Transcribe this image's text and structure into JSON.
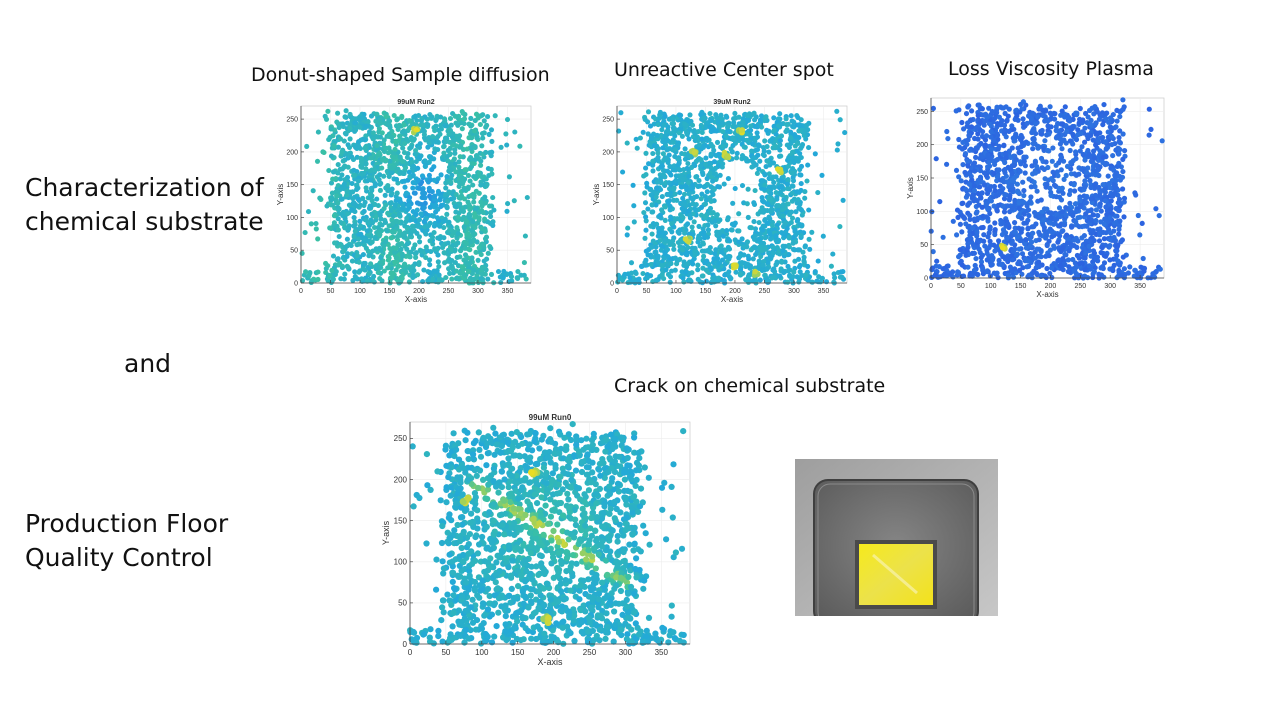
{
  "slide": {
    "left_label_top": "Characterization of\nchemical substrate",
    "left_label_mid": "and",
    "left_label_bottom": "Production Floor\nQuality Control",
    "caption_1": "Donut-shaped Sample diffusion",
    "caption_2": "Unreactive Center spot",
    "caption_3": "Loss Viscosity Plasma",
    "caption_4": "Crack on chemical substrate"
  },
  "photo": {
    "subject": "substrate-photo",
    "tray_color": "#6f6f6f",
    "pad_color": "#f2e51a",
    "background_color": "#b8b8b8"
  },
  "chart_data": [
    {
      "type": "scatter",
      "title": "99uM Run2",
      "xlabel": "X-axis",
      "ylabel": "Y-axis",
      "xlim": [
        0,
        390
      ],
      "ylim": [
        0,
        270
      ],
      "xticks": [
        0,
        50,
        100,
        150,
        200,
        250,
        300,
        350
      ],
      "yticks": [
        0,
        50,
        100,
        150,
        200,
        250
      ],
      "grid": true,
      "pattern": "donut",
      "hotspots": [
        [
          195,
          232,
          1.0
        ]
      ],
      "colormap": [
        "#2b6fe8",
        "#23a9d8",
        "#3cc2a0",
        "#c8d640",
        "#f5e01a"
      ]
    },
    {
      "type": "scatter",
      "title": "39uM Run2",
      "xlabel": "X-axis",
      "ylabel": "Y-axis",
      "xlim": [
        0,
        390
      ],
      "ylim": [
        0,
        270
      ],
      "xticks": [
        0,
        50,
        100,
        150,
        200,
        250,
        300,
        350
      ],
      "yticks": [
        0,
        50,
        100,
        150,
        200,
        250
      ],
      "grid": true,
      "pattern": "center-void",
      "hotspots": [
        [
          210,
          232,
          0.8
        ],
        [
          275,
          170,
          0.8
        ],
        [
          120,
          65,
          0.8
        ],
        [
          185,
          195,
          0.6
        ],
        [
          130,
          200,
          0.6
        ],
        [
          200,
          25,
          0.8
        ],
        [
          235,
          15,
          0.7
        ]
      ],
      "colormap": [
        "#2b6fe8",
        "#23a9d8",
        "#3cc2a0",
        "#c8d640",
        "#f5e01a"
      ]
    },
    {
      "type": "scatter",
      "title": "",
      "xlabel": "X-axis",
      "ylabel": "Y-axis",
      "xlim": [
        0,
        390
      ],
      "ylim": [
        0,
        270
      ],
      "xticks": [
        0,
        50,
        100,
        150,
        200,
        250,
        300,
        350
      ],
      "yticks": [
        0,
        50,
        100,
        150,
        200,
        250
      ],
      "grid": true,
      "pattern": "low-viscosity",
      "hotspots": [
        [
          120,
          45,
          1.0
        ]
      ],
      "colormap": [
        "#2b5ce0",
        "#2f7de0",
        "#36a0cc",
        "#c8d640",
        "#f5e01a"
      ]
    },
    {
      "type": "scatter",
      "title": "99uM Run0",
      "xlabel": "X-axis",
      "ylabel": "Y-axis",
      "xlim": [
        0,
        390
      ],
      "ylim": [
        0,
        270
      ],
      "xticks": [
        0,
        50,
        100,
        150,
        200,
        250,
        300,
        350
      ],
      "yticks": [
        0,
        50,
        100,
        150,
        200,
        250
      ],
      "grid": true,
      "pattern": "crack",
      "crack_line": [
        [
          90,
          195
        ],
        [
          300,
          75
        ]
      ],
      "hotspots": [
        [
          173,
          207,
          1.0
        ],
        [
          78,
          175,
          0.7
        ],
        [
          190,
          30,
          0.5
        ]
      ],
      "colormap": [
        "#2b6fe8",
        "#23a9d8",
        "#3cc2a0",
        "#c8d640",
        "#f5e01a"
      ]
    }
  ]
}
